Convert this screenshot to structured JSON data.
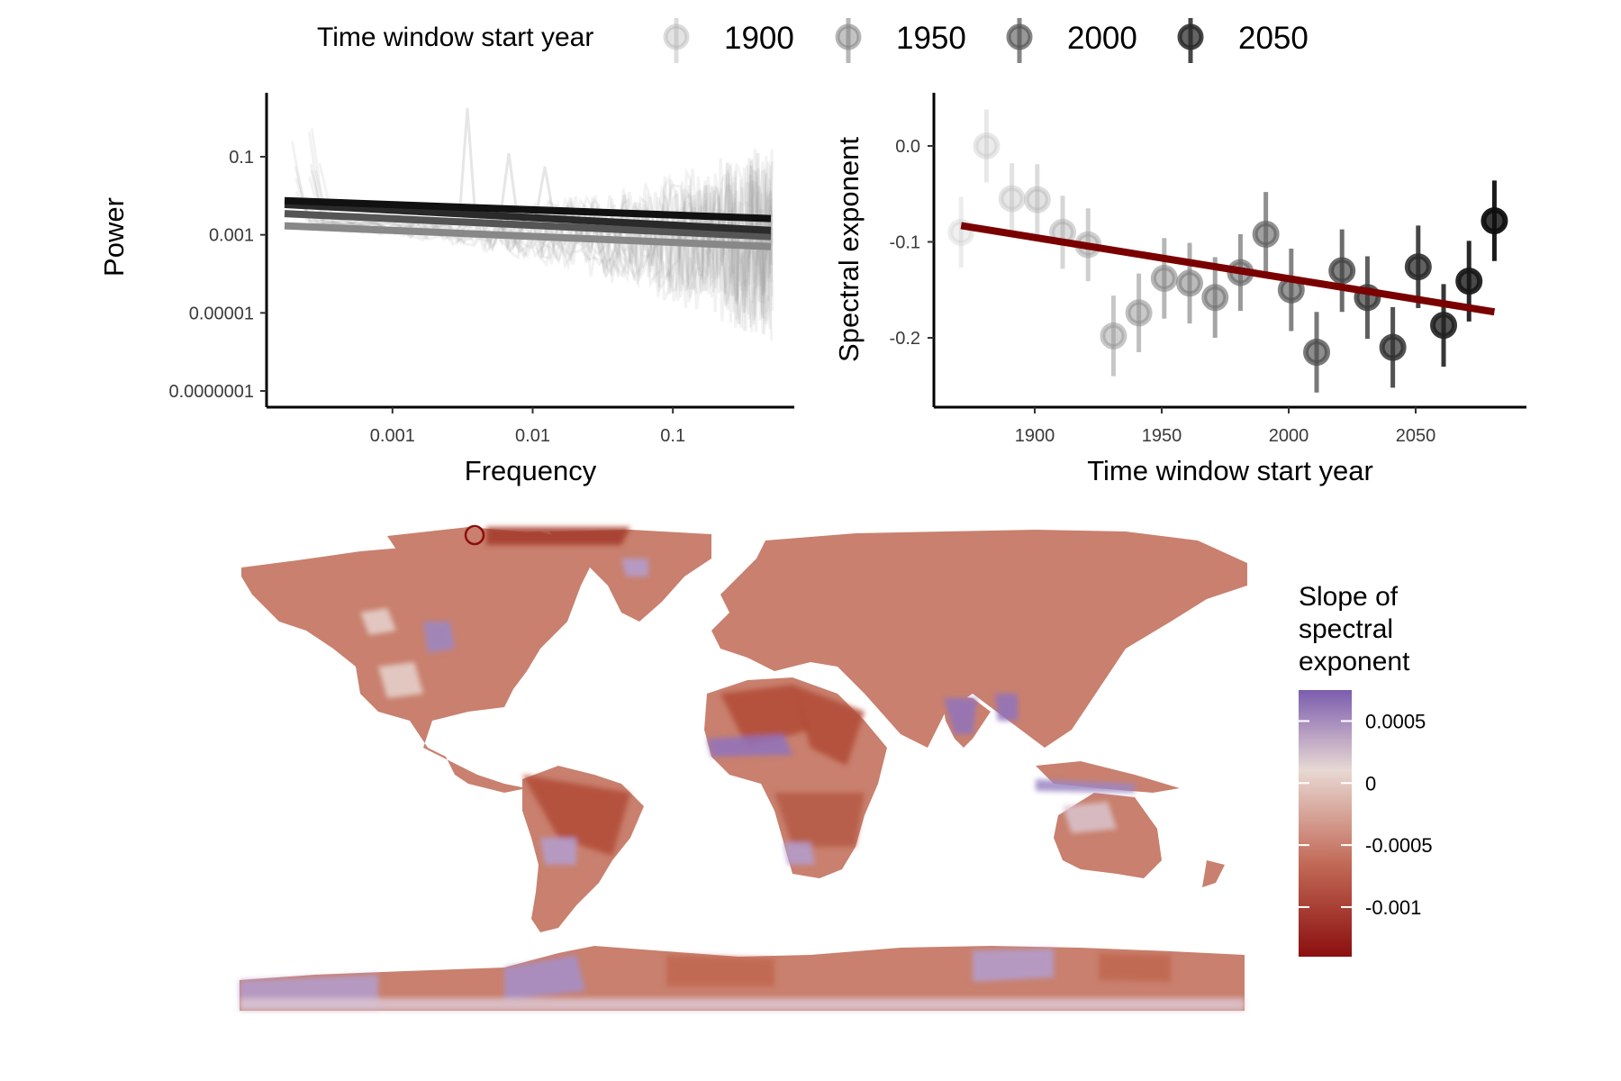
{
  "legend": {
    "title": "Time window start year",
    "entries": [
      {
        "label": "1900",
        "year": 1900
      },
      {
        "label": "1950",
        "year": 1950
      },
      {
        "label": "2000",
        "year": 2000
      },
      {
        "label": "2050",
        "year": 2050
      }
    ]
  },
  "chart_data": [
    {
      "type": "line",
      "xlabel": "Frequency",
      "ylabel": "Power",
      "x_scale": "log10",
      "y_scale": "log10",
      "xlim": [
        0.00017,
        0.5
      ],
      "ylim": [
        5e-08,
        3
      ],
      "x_ticks": [
        {
          "value": 0.001,
          "label": "0.001"
        },
        {
          "value": 0.01,
          "label": "0.01"
        },
        {
          "value": 0.1,
          "label": "0.1"
        }
      ],
      "y_ticks": [
        {
          "value": 0.1,
          "label": "0.1"
        },
        {
          "value": 0.001,
          "label": "0.001"
        },
        {
          "value": 1e-05,
          "label": "0.00001"
        },
        {
          "value": 1e-07,
          "label": "0.0000001"
        }
      ],
      "grid": false,
      "fitted_lines": [
        {
          "start_year": 1900,
          "x": [
            0.00017,
            0.5
          ],
          "y": [
            0.0017,
            0.0005
          ],
          "color": "#888888"
        },
        {
          "start_year": 1950,
          "x": [
            0.00017,
            0.5
          ],
          "y": [
            0.0035,
            0.0009
          ],
          "color": "#555555"
        },
        {
          "start_year": 2000,
          "x": [
            0.00017,
            0.5
          ],
          "y": [
            0.006,
            0.0013
          ],
          "color": "#2a2a2a"
        },
        {
          "start_year": 2050,
          "x": [
            0.00017,
            0.5
          ],
          "y": [
            0.0075,
            0.0026
          ],
          "color": "#111111"
        }
      ],
      "background_spectra": "raw power spectra for each time window, drawn in translucent grey"
    },
    {
      "type": "scatter",
      "xlabel": "Time window start year",
      "ylabel": "Spectral exponent",
      "xlim": [
        1866,
        2092
      ],
      "ylim": [
        -0.275,
        0.04
      ],
      "x_ticks": [
        1900,
        1950,
        2000,
        2050
      ],
      "y_ticks": [
        {
          "value": 0.0,
          "label": "0.0"
        },
        {
          "value": -0.1,
          "label": "-0.1"
        },
        {
          "value": -0.2,
          "label": "-0.2"
        }
      ],
      "grid": false,
      "points": [
        {
          "x": 1871,
          "y": -0.09,
          "err": 0.037
        },
        {
          "x": 1881,
          "y": 0.0,
          "err": 0.038
        },
        {
          "x": 1891,
          "y": -0.055,
          "err": 0.037
        },
        {
          "x": 1901,
          "y": -0.056,
          "err": 0.037
        },
        {
          "x": 1911,
          "y": -0.09,
          "err": 0.038
        },
        {
          "x": 1921,
          "y": -0.103,
          "err": 0.038
        },
        {
          "x": 1931,
          "y": -0.198,
          "err": 0.042
        },
        {
          "x": 1941,
          "y": -0.174,
          "err": 0.041
        },
        {
          "x": 1951,
          "y": -0.138,
          "err": 0.042
        },
        {
          "x": 1961,
          "y": -0.143,
          "err": 0.042
        },
        {
          "x": 1971,
          "y": -0.158,
          "err": 0.042
        },
        {
          "x": 1981,
          "y": -0.132,
          "err": 0.04
        },
        {
          "x": 1991,
          "y": -0.092,
          "err": 0.044
        },
        {
          "x": 2001,
          "y": -0.15,
          "err": 0.043
        },
        {
          "x": 2011,
          "y": -0.215,
          "err": 0.042
        },
        {
          "x": 2021,
          "y": -0.13,
          "err": 0.043
        },
        {
          "x": 2031,
          "y": -0.158,
          "err": 0.043
        },
        {
          "x": 2041,
          "y": -0.21,
          "err": 0.042
        },
        {
          "x": 2051,
          "y": -0.126,
          "err": 0.043
        },
        {
          "x": 2061,
          "y": -0.187,
          "err": 0.043
        },
        {
          "x": 2071,
          "y": -0.141,
          "err": 0.042
        },
        {
          "x": 2081,
          "y": -0.078,
          "err": 0.042
        }
      ],
      "trend_line": {
        "x": [
          1871,
          2081
        ],
        "y": [
          -0.083,
          -0.173
        ],
        "color": "#7a0000"
      }
    },
    {
      "type": "heatmap",
      "description": "World map of the slope of spectral exponent per grid cell; a dark red open circle marks one location in northern Greenland/Canada",
      "colorbar": {
        "title": [
          "Slope of",
          "spectral",
          "exponent"
        ],
        "range": [
          -0.0014,
          0.00075
        ],
        "ticks": [
          {
            "value": 0.0005,
            "label": "0.0005"
          },
          {
            "value": 0,
            "label": "0"
          },
          {
            "value": -0.0005,
            "label": "-0.0005"
          },
          {
            "value": -0.001,
            "label": "-0.001"
          }
        ],
        "colors": {
          "low": "#8b0f0f",
          "mid": "#e8d8d3",
          "high": "#7c5cae"
        }
      },
      "marked_location": {
        "lon": -58,
        "lat": 82
      }
    }
  ],
  "colors": {
    "trend": "#7a0000",
    "map_land_base": "#c9806e",
    "map_low": "#8b0f0f",
    "map_mid": "#e8d8d3",
    "map_high": "#7c5cae"
  }
}
